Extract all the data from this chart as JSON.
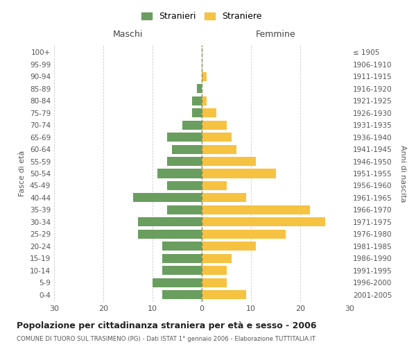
{
  "age_groups": [
    "0-4",
    "5-9",
    "10-14",
    "15-19",
    "20-24",
    "25-29",
    "30-34",
    "35-39",
    "40-44",
    "45-49",
    "50-54",
    "55-59",
    "60-64",
    "65-69",
    "70-74",
    "75-79",
    "80-84",
    "85-89",
    "90-94",
    "95-99",
    "100+"
  ],
  "birth_years": [
    "2001-2005",
    "1996-2000",
    "1991-1995",
    "1986-1990",
    "1981-1985",
    "1976-1980",
    "1971-1975",
    "1966-1970",
    "1961-1965",
    "1956-1960",
    "1951-1955",
    "1946-1950",
    "1941-1945",
    "1936-1940",
    "1931-1935",
    "1926-1930",
    "1921-1925",
    "1916-1920",
    "1911-1915",
    "1906-1910",
    "≤ 1905"
  ],
  "males": [
    8,
    10,
    8,
    8,
    8,
    13,
    13,
    7,
    14,
    7,
    9,
    7,
    6,
    7,
    4,
    2,
    2,
    1,
    0,
    0,
    0
  ],
  "females": [
    9,
    5,
    5,
    6,
    11,
    17,
    25,
    22,
    9,
    5,
    15,
    11,
    7,
    6,
    5,
    3,
    1,
    0,
    1,
    0,
    0
  ],
  "male_color": "#6a9e5f",
  "female_color": "#f5c242",
  "background_color": "#ffffff",
  "grid_color": "#cccccc",
  "title": "Popolazione per cittadinanza straniera per età e sesso - 2006",
  "subtitle": "COMUNE DI TUORO SUL TRASIMENO (PG) - Dati ISTAT 1° gennaio 2006 - Elaborazione TUTTITALIA.IT",
  "ylabel_left": "Fasce di età",
  "ylabel_right": "Anni di nascita",
  "xlabel_left": "Maschi",
  "xlabel_right": "Femmine",
  "legend_male": "Stranieri",
  "legend_female": "Straniere",
  "xlim": 30
}
